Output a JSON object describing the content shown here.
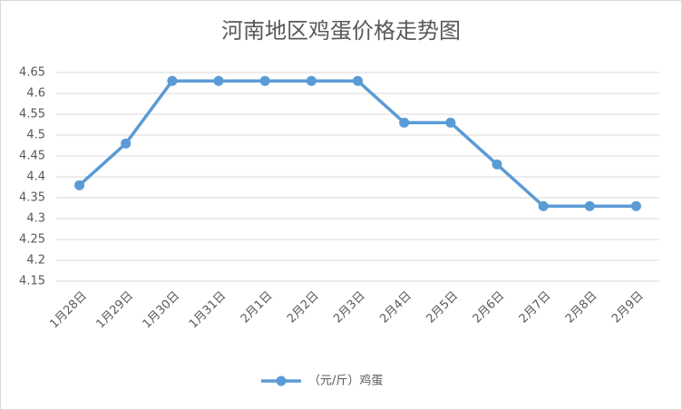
{
  "chart_data": {
    "type": "line",
    "title": "河南地区鸡蛋价格走势图",
    "categories": [
      "1月28日",
      "1月29日",
      "1月30日",
      "1月31日",
      "2月1日",
      "2月2日",
      "2月3日",
      "2月4日",
      "2月5日",
      "2月6日",
      "2月7日",
      "2月8日",
      "2月9日"
    ],
    "series": [
      {
        "name": "（元/斤）鸡蛋",
        "color": "#5b9bd5",
        "values": [
          4.38,
          4.48,
          4.63,
          4.63,
          4.63,
          4.63,
          4.63,
          4.53,
          4.53,
          4.43,
          4.33,
          4.33,
          4.33
        ]
      }
    ],
    "ylim": [
      4.15,
      4.65
    ],
    "yticks": [
      4.15,
      4.2,
      4.25,
      4.3,
      4.35,
      4.4,
      4.45,
      4.5,
      4.55,
      4.6,
      4.65
    ],
    "grid": true,
    "legend": "bottom"
  }
}
